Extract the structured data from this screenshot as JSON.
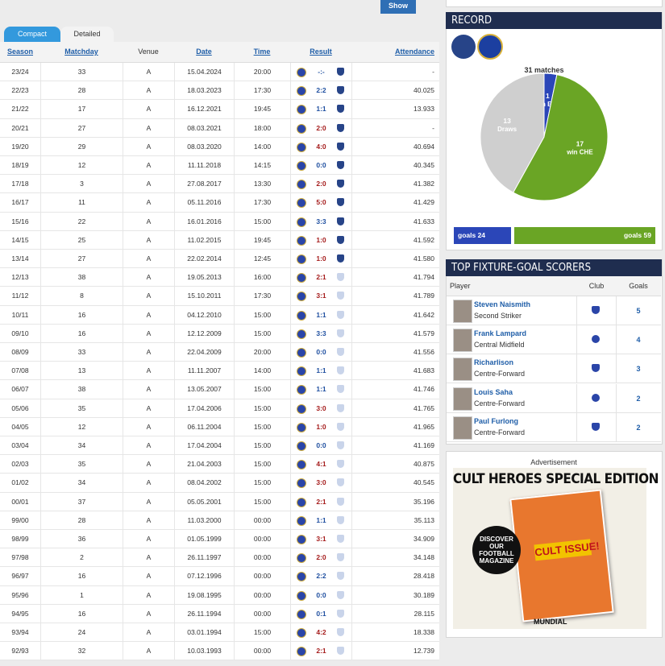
{
  "show_button": "Show",
  "tabs": [
    "Compact",
    "Detailed"
  ],
  "table": {
    "columns": [
      "Season",
      "Matchday",
      "Venue",
      "Date",
      "Time",
      "Result",
      "Attendance"
    ],
    "rows": [
      [
        "23/24",
        "33",
        "A",
        "15.04.2024",
        "20:00",
        "-:-",
        "-"
      ],
      [
        "22/23",
        "28",
        "A",
        "18.03.2023",
        "17:30",
        "2:2",
        "40.025"
      ],
      [
        "21/22",
        "17",
        "A",
        "16.12.2021",
        "19:45",
        "1:1",
        "13.933"
      ],
      [
        "20/21",
        "27",
        "A",
        "08.03.2021",
        "18:00",
        "2:0",
        "-"
      ],
      [
        "19/20",
        "29",
        "A",
        "08.03.2020",
        "14:00",
        "4:0",
        "40.694"
      ],
      [
        "18/19",
        "12",
        "A",
        "11.11.2018",
        "14:15",
        "0:0",
        "40.345"
      ],
      [
        "17/18",
        "3",
        "A",
        "27.08.2017",
        "13:30",
        "2:0",
        "41.382"
      ],
      [
        "16/17",
        "11",
        "A",
        "05.11.2016",
        "17:30",
        "5:0",
        "41.429"
      ],
      [
        "15/16",
        "22",
        "A",
        "16.01.2016",
        "15:00",
        "3:3",
        "41.633"
      ],
      [
        "14/15",
        "25",
        "A",
        "11.02.2015",
        "19:45",
        "1:0",
        "41.592"
      ],
      [
        "13/14",
        "27",
        "A",
        "22.02.2014",
        "12:45",
        "1:0",
        "41.580"
      ],
      [
        "12/13",
        "38",
        "A",
        "19.05.2013",
        "16:00",
        "2:1",
        "41.794"
      ],
      [
        "11/12",
        "8",
        "A",
        "15.10.2011",
        "17:30",
        "3:1",
        "41.789"
      ],
      [
        "10/11",
        "16",
        "A",
        "04.12.2010",
        "15:00",
        "1:1",
        "41.642"
      ],
      [
        "09/10",
        "16",
        "A",
        "12.12.2009",
        "15:00",
        "3:3",
        "41.579"
      ],
      [
        "08/09",
        "33",
        "A",
        "22.04.2009",
        "20:00",
        "0:0",
        "41.556"
      ],
      [
        "07/08",
        "13",
        "A",
        "11.11.2007",
        "14:00",
        "1:1",
        "41.683"
      ],
      [
        "06/07",
        "38",
        "A",
        "13.05.2007",
        "15:00",
        "1:1",
        "41.746"
      ],
      [
        "05/06",
        "35",
        "A",
        "17.04.2006",
        "15:00",
        "3:0",
        "41.765"
      ],
      [
        "04/05",
        "12",
        "A",
        "06.11.2004",
        "15:00",
        "1:0",
        "41.965"
      ],
      [
        "03/04",
        "34",
        "A",
        "17.04.2004",
        "15:00",
        "0:0",
        "41.169"
      ],
      [
        "02/03",
        "35",
        "A",
        "21.04.2003",
        "15:00",
        "4:1",
        "40.875"
      ],
      [
        "01/02",
        "34",
        "A",
        "08.04.2002",
        "15:00",
        "3:0",
        "40.545"
      ],
      [
        "00/01",
        "37",
        "A",
        "05.05.2001",
        "15:00",
        "2:1",
        "35.196"
      ],
      [
        "99/00",
        "28",
        "A",
        "11.03.2000",
        "00:00",
        "1:1",
        "35.113"
      ],
      [
        "98/99",
        "36",
        "A",
        "01.05.1999",
        "00:00",
        "3:1",
        "34.909"
      ],
      [
        "97/98",
        "2",
        "A",
        "26.11.1997",
        "00:00",
        "2:0",
        "34.148"
      ],
      [
        "96/97",
        "16",
        "A",
        "07.12.1996",
        "00:00",
        "2:2",
        "28.418"
      ],
      [
        "95/96",
        "1",
        "A",
        "19.08.1995",
        "00:00",
        "0:0",
        "30.189"
      ],
      [
        "94/95",
        "16",
        "A",
        "26.11.1994",
        "00:00",
        "0:1",
        "28.115"
      ],
      [
        "93/94",
        "24",
        "A",
        "03.01.1994",
        "15:00",
        "4:2",
        "18.338"
      ],
      [
        "92/93",
        "32",
        "A",
        "10.03.1993",
        "00:00",
        "2:1",
        "12.739"
      ]
    ]
  },
  "record_title": "RECORD",
  "chart_data": {
    "type": "pie",
    "title": "31 matches",
    "labels": [
      "win EVE",
      "win CHE",
      "Draws"
    ],
    "values": [
      1,
      17,
      13
    ],
    "colors": [
      "#2b46b8",
      "#6aa525",
      "#cfcfcf"
    ],
    "goals": {
      "labels": [
        "goals",
        "goals"
      ],
      "values": [
        24,
        59
      ],
      "colors": [
        "#2b46b8",
        "#6aa525"
      ]
    }
  },
  "scorers": {
    "title": "TOP FIXTURE-GOAL SCORERS",
    "columns": [
      "Player",
      "Club",
      "Goals"
    ],
    "rows": [
      [
        "Steven Naismith",
        "Second Striker",
        "5"
      ],
      [
        "Frank Lampard",
        "Central Midfield",
        "4"
      ],
      [
        "Richarlison",
        "Centre-Forward",
        "3"
      ],
      [
        "Louis Saha",
        "Centre-Forward",
        "2"
      ],
      [
        "Paul Furlong",
        "Centre-Forward",
        "2"
      ]
    ]
  },
  "ad": {
    "label": "Advertisement",
    "headline": "CULT HEROES SPECIAL EDITION",
    "badge": "DISCOVER OUR FOOTBALL MAGAZINE",
    "cover_title": "CULT ISSUE!",
    "brand": "MUNDIAL"
  }
}
